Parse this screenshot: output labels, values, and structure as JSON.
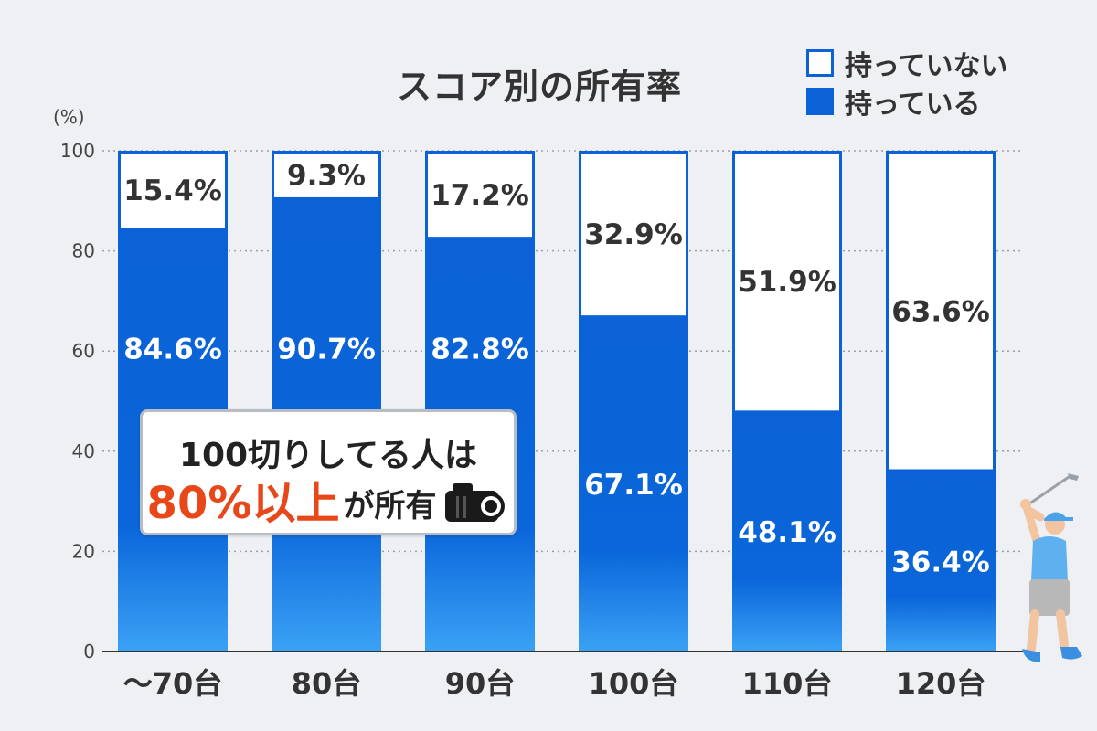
{
  "chart_data": {
    "type": "bar",
    "stacked": true,
    "title": "スコア別の所有率",
    "unit_label": "(%)",
    "categories": [
      "〜70台",
      "80台",
      "90台",
      "100台",
      "110台",
      "120台"
    ],
    "series": [
      {
        "name": "持っている",
        "values": [
          84.6,
          90.7,
          82.8,
          67.1,
          48.1,
          36.4
        ],
        "labels": [
          "84.6%",
          "90.7%",
          "82.8%",
          "67.1%",
          "48.1%",
          "36.4%"
        ]
      },
      {
        "name": "持っていない",
        "values": [
          15.4,
          9.3,
          17.2,
          32.9,
          51.9,
          63.6
        ],
        "labels": [
          "15.4%",
          "9.3%",
          "17.2%",
          "32.9%",
          "51.9%",
          "63.6%"
        ]
      }
    ],
    "ylim": [
      0,
      100
    ],
    "yticks": [
      0,
      20,
      40,
      60,
      80,
      100
    ],
    "ytick_labels": [
      "0",
      "20",
      "40",
      "60",
      "80",
      "100"
    ],
    "grid": true,
    "legend": {
      "position": "top-right",
      "entries": [
        {
          "label": "持っていない",
          "style": "white"
        },
        {
          "label": "持っている",
          "style": "blue"
        }
      ]
    }
  },
  "callout": {
    "line1": "100切りしてる人は",
    "highlight": "80%以上",
    "rest": "が所有",
    "icon": "rangefinder-icon"
  },
  "decoration": {
    "icon": "golfer-icon"
  },
  "colors": {
    "bar_blue_top": "#0a62d6",
    "bar_blue_bottom": "#3aa2f5",
    "bar_outline": "#0a62d6",
    "highlight": "#e8471a",
    "background": "#eef0f4"
  }
}
